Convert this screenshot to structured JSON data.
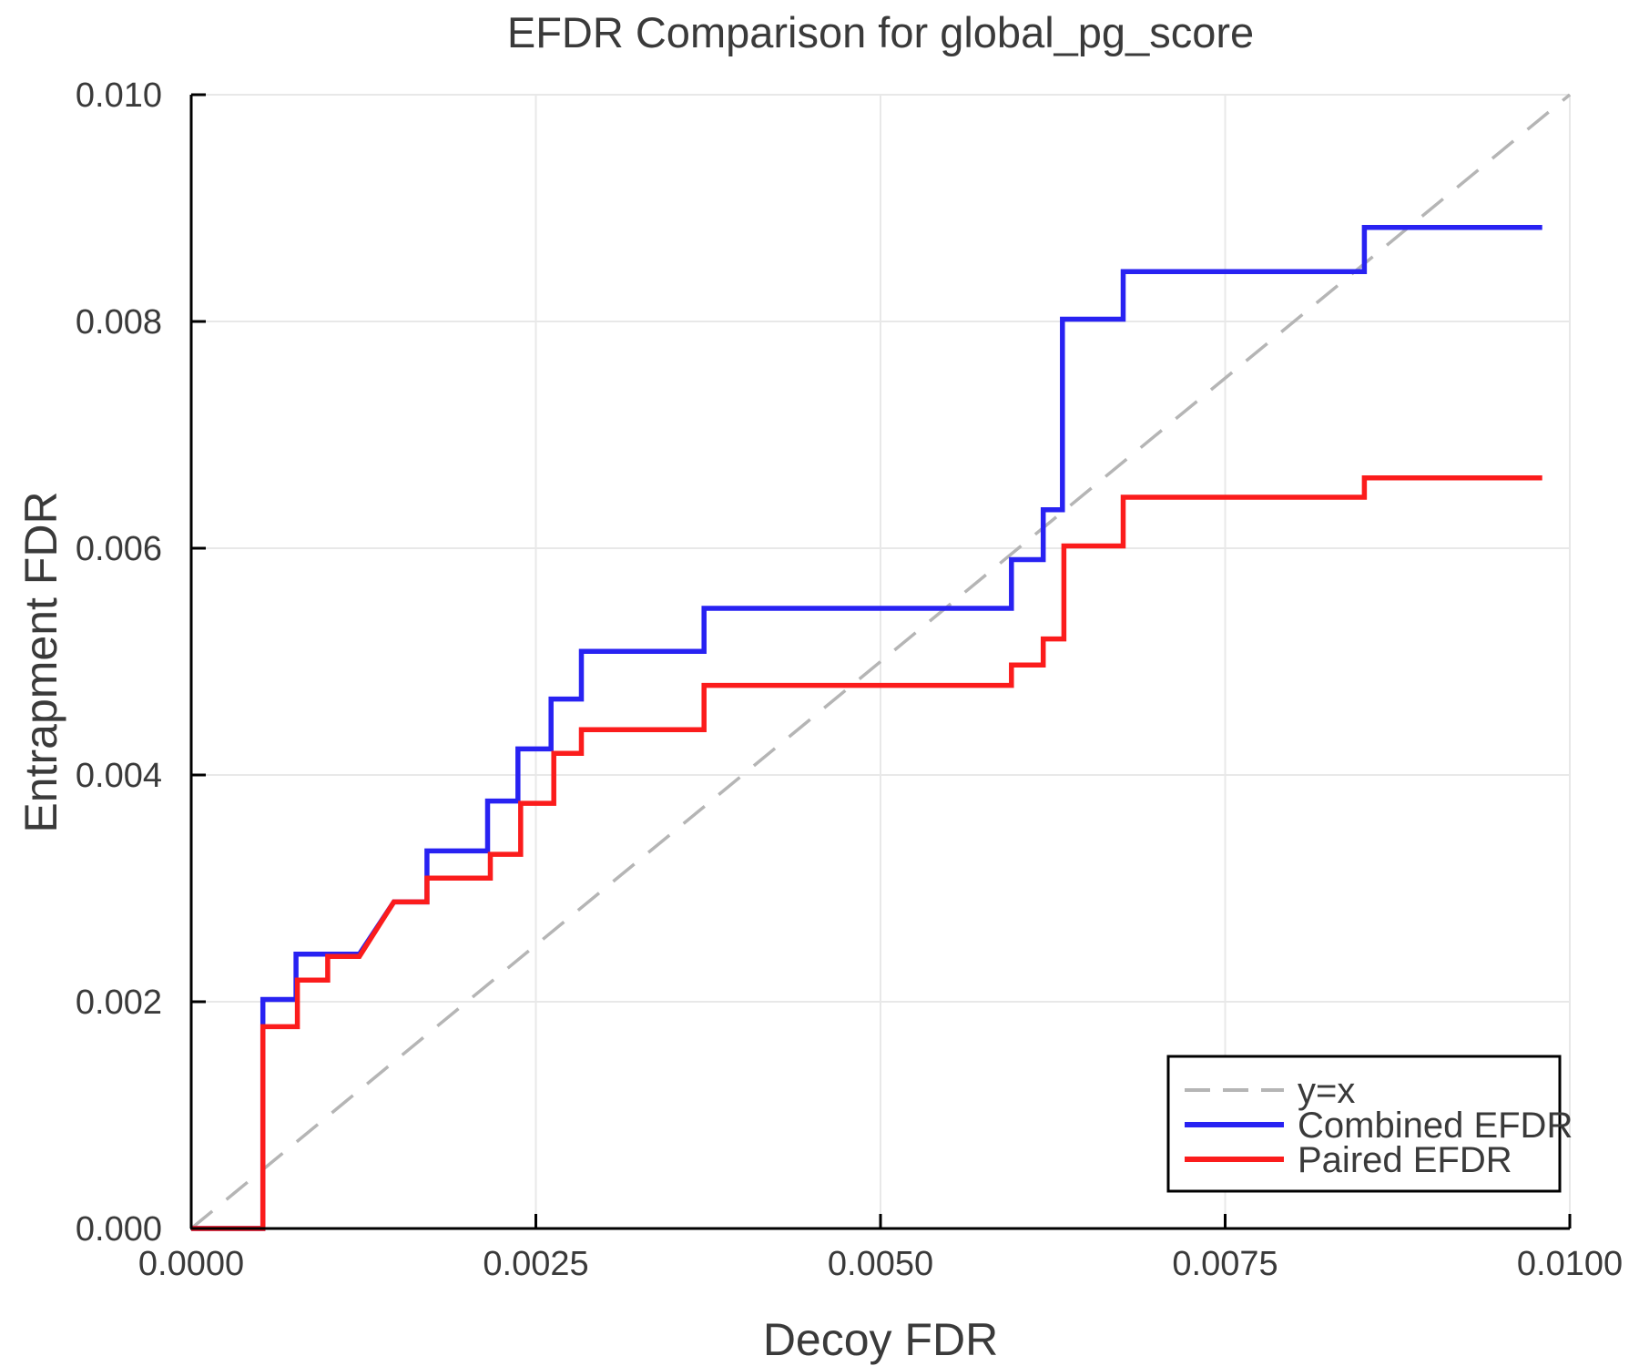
{
  "title": "EFDR Comparison for global_pg_score",
  "axes": {
    "xlabel": "Decoy FDR",
    "ylabel": "Entrapment FDR"
  },
  "legend": {
    "position": "bottom-right",
    "items": [
      {
        "label": "y=x"
      },
      {
        "label": "Combined EFDR"
      },
      {
        "label": "Paired EFDR"
      }
    ]
  },
  "colors": {
    "combined": "#2822f2",
    "paired": "#fb1c1c",
    "identity": "#b5b5b5",
    "grid": "#e8e8e8",
    "spine": "#000000",
    "text": "#3a3a3a"
  },
  "chart_data": {
    "type": "line",
    "title": "EFDR Comparison for global_pg_score",
    "xlabel": "Decoy FDR",
    "ylabel": "Entrapment FDR",
    "xlim": [
      0,
      0.01
    ],
    "ylim": [
      0,
      0.01
    ],
    "grid": true,
    "legend_position": "bottom-right",
    "x_ticks": {
      "values": [
        0,
        0.0025,
        0.005,
        0.0075,
        0.01
      ],
      "labels": [
        "0.0000",
        "0.0025",
        "0.0050",
        "0.0075",
        "0.0100"
      ]
    },
    "y_ticks": {
      "values": [
        0,
        0.002,
        0.004,
        0.006,
        0.008,
        0.01
      ],
      "labels": [
        "0.000",
        "0.002",
        "0.004",
        "0.006",
        "0.008",
        "0.010"
      ]
    },
    "series": [
      {
        "name": "y=x",
        "style": "dashed",
        "color": "#b5b5b5",
        "width": 3.5,
        "points": [
          [
            0,
            0
          ],
          [
            0.01,
            0.01
          ]
        ]
      },
      {
        "name": "Combined EFDR",
        "style": "solid",
        "color": "#2822f2",
        "width": 5.5,
        "points": [
          [
            0,
            0
          ],
          [
            0.00052,
            0
          ],
          [
            0.00052,
            0.00202
          ],
          [
            0.00076,
            0.00202
          ],
          [
            0.00076,
            0.00242
          ],
          [
            0.00122,
            0.00242
          ],
          [
            0.00147,
            0.00288
          ],
          [
            0.00171,
            0.00288
          ],
          [
            0.00171,
            0.00333
          ],
          [
            0.00215,
            0.00333
          ],
          [
            0.00215,
            0.00377
          ],
          [
            0.00237,
            0.00377
          ],
          [
            0.00237,
            0.00423
          ],
          [
            0.00261,
            0.00423
          ],
          [
            0.00261,
            0.00467
          ],
          [
            0.00283,
            0.00467
          ],
          [
            0.00283,
            0.00509
          ],
          [
            0.00372,
            0.00509
          ],
          [
            0.00372,
            0.00547
          ],
          [
            0.00595,
            0.00547
          ],
          [
            0.00595,
            0.0059
          ],
          [
            0.00618,
            0.0059
          ],
          [
            0.00618,
            0.00634
          ],
          [
            0.00632,
            0.00634
          ],
          [
            0.00632,
            0.00802
          ],
          [
            0.00676,
            0.00802
          ],
          [
            0.00676,
            0.00844
          ],
          [
            0.00851,
            0.00844
          ],
          [
            0.00851,
            0.00883
          ],
          [
            0.0098,
            0.00883
          ]
        ]
      },
      {
        "name": "Paired EFDR",
        "style": "solid",
        "color": "#fb1c1c",
        "width": 5.5,
        "points": [
          [
            0,
            0
          ],
          [
            0.00052,
            0
          ],
          [
            0.00052,
            0.00178
          ],
          [
            0.00077,
            0.00178
          ],
          [
            0.00077,
            0.00219
          ],
          [
            0.00099,
            0.00219
          ],
          [
            0.00099,
            0.0024
          ],
          [
            0.00122,
            0.0024
          ],
          [
            0.00147,
            0.00288
          ],
          [
            0.00171,
            0.00288
          ],
          [
            0.00171,
            0.00309
          ],
          [
            0.00217,
            0.00309
          ],
          [
            0.00217,
            0.0033
          ],
          [
            0.00239,
            0.0033
          ],
          [
            0.00239,
            0.00375
          ],
          [
            0.00263,
            0.00375
          ],
          [
            0.00263,
            0.00419
          ],
          [
            0.00283,
            0.00419
          ],
          [
            0.00283,
            0.0044
          ],
          [
            0.00372,
            0.0044
          ],
          [
            0.00372,
            0.00479
          ],
          [
            0.00595,
            0.00479
          ],
          [
            0.00595,
            0.00497
          ],
          [
            0.00618,
            0.00497
          ],
          [
            0.00618,
            0.0052
          ],
          [
            0.00633,
            0.0052
          ],
          [
            0.00633,
            0.00602
          ],
          [
            0.00676,
            0.00602
          ],
          [
            0.00676,
            0.00645
          ],
          [
            0.00851,
            0.00645
          ],
          [
            0.00851,
            0.00662
          ],
          [
            0.0098,
            0.00662
          ]
        ]
      }
    ]
  }
}
